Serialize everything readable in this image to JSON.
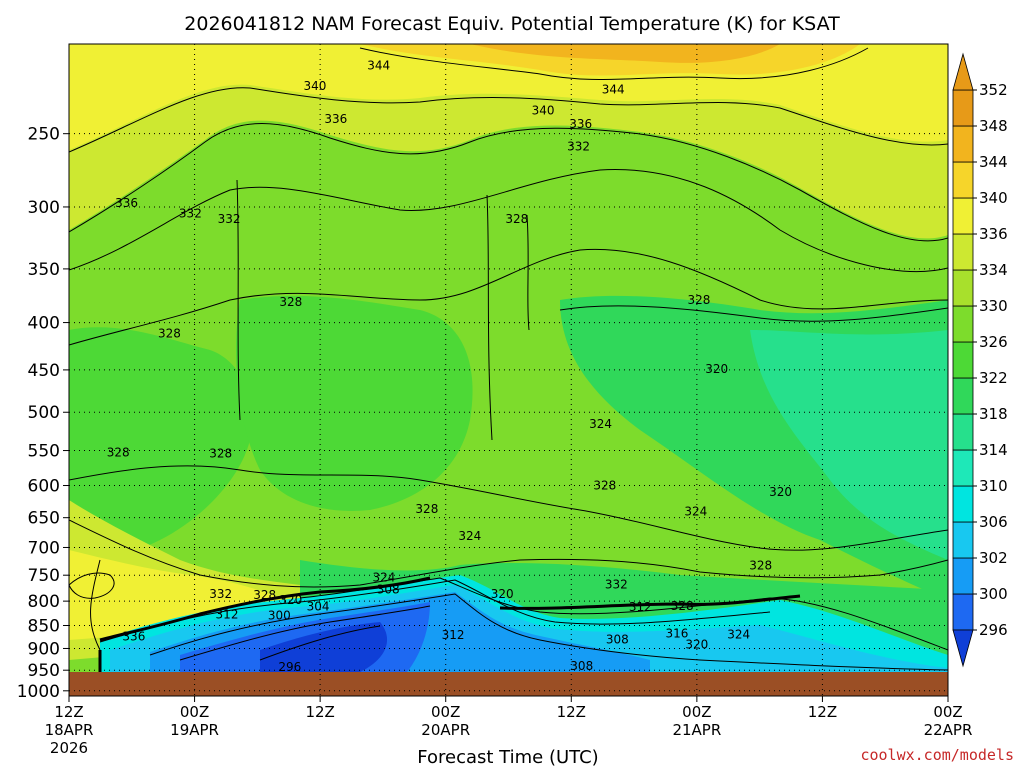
{
  "chart_data": {
    "type": "heatmap",
    "title": "2026041812 NAM Forecast Equiv. Potential Temperature (K) for KSAT",
    "xlabel": "Forecast Time (UTC)",
    "ylabel": "",
    "x_ticks": [
      {
        "time": "12Z",
        "date": "18APR",
        "year": "2026",
        "hours": 0
      },
      {
        "time": "00Z",
        "date": "19APR",
        "year": "",
        "hours": 12
      },
      {
        "time": "12Z",
        "date": "",
        "year": "",
        "hours": 24
      },
      {
        "time": "00Z",
        "date": "20APR",
        "year": "",
        "hours": 36
      },
      {
        "time": "12Z",
        "date": "",
        "year": "",
        "hours": 48
      },
      {
        "time": "00Z",
        "date": "21APR",
        "year": "",
        "hours": 60
      },
      {
        "time": "12Z",
        "date": "",
        "year": "",
        "hours": 72
      },
      {
        "time": "00Z",
        "date": "22APR",
        "year": "",
        "hours": 84
      }
    ],
    "y_ticks": [
      250,
      300,
      350,
      400,
      450,
      500,
      550,
      600,
      650,
      700,
      750,
      800,
      850,
      900,
      950,
      1000
    ],
    "y_range_hpa": [
      200,
      1013
    ],
    "colorbar": {
      "levels": [
        296,
        300,
        302,
        306,
        310,
        314,
        318,
        322,
        326,
        330,
        334,
        336,
        340,
        344,
        348,
        352
      ],
      "colors": [
        "#0f3fd7",
        "#1e69f2",
        "#169cf5",
        "#18c8f0",
        "#00e5e0",
        "#1ee8b8",
        "#26e08c",
        "#30d85a",
        "#4dd936",
        "#7ddc2c",
        "#a8e02c",
        "#cde831",
        "#f0f034",
        "#f6d52a",
        "#f2b41e",
        "#e79a18"
      ]
    },
    "contour_labels": [
      {
        "value": "344",
        "hours": 29.6,
        "hpa": 211
      },
      {
        "value": "344",
        "hours": 52.0,
        "hpa": 224
      },
      {
        "value": "340",
        "hours": 23.5,
        "hpa": 222
      },
      {
        "value": "340",
        "hours": 45.3,
        "hpa": 236
      },
      {
        "value": "336",
        "hours": 25.5,
        "hpa": 241
      },
      {
        "value": "336",
        "hours": 48.9,
        "hpa": 244
      },
      {
        "value": "336",
        "hours": 5.5,
        "hpa": 297
      },
      {
        "value": "332",
        "hours": 48.7,
        "hpa": 258
      },
      {
        "value": "332",
        "hours": 11.6,
        "hpa": 305
      },
      {
        "value": "332",
        "hours": 15.3,
        "hpa": 309
      },
      {
        "value": "328",
        "hours": 42.8,
        "hpa": 309
      },
      {
        "value": "328",
        "hours": 21.2,
        "hpa": 380
      },
      {
        "value": "328",
        "hours": 60.2,
        "hpa": 378
      },
      {
        "value": "328",
        "hours": 9.6,
        "hpa": 411
      },
      {
        "value": "328",
        "hours": 4.7,
        "hpa": 553
      },
      {
        "value": "328",
        "hours": 14.5,
        "hpa": 554
      },
      {
        "value": "328",
        "hours": 34.2,
        "hpa": 636
      },
      {
        "value": "320",
        "hours": 61.9,
        "hpa": 449
      },
      {
        "value": "324",
        "hours": 50.8,
        "hpa": 515
      },
      {
        "value": "328",
        "hours": 51.2,
        "hpa": 600
      },
      {
        "value": "324",
        "hours": 59.9,
        "hpa": 640
      },
      {
        "value": "320",
        "hours": 68.0,
        "hpa": 610
      },
      {
        "value": "324",
        "hours": 38.3,
        "hpa": 680
      },
      {
        "value": "328",
        "hours": 66.1,
        "hpa": 732
      },
      {
        "value": "324",
        "hours": 30.1,
        "hpa": 754
      },
      {
        "value": "308",
        "hours": 30.5,
        "hpa": 777
      },
      {
        "value": "332",
        "hours": 14.5,
        "hpa": 786
      },
      {
        "value": "328",
        "hours": 18.7,
        "hpa": 788
      },
      {
        "value": "320",
        "hours": 21.2,
        "hpa": 798
      },
      {
        "value": "304",
        "hours": 23.8,
        "hpa": 811
      },
      {
        "value": "312",
        "hours": 15.1,
        "hpa": 827
      },
      {
        "value": "300",
        "hours": 20.1,
        "hpa": 829
      },
      {
        "value": "320",
        "hours": 41.4,
        "hpa": 786
      },
      {
        "value": "332",
        "hours": 52.3,
        "hpa": 768
      },
      {
        "value": "312",
        "hours": 54.6,
        "hpa": 812
      },
      {
        "value": "328",
        "hours": 58.6,
        "hpa": 810
      },
      {
        "value": "316",
        "hours": 58.1,
        "hpa": 867
      },
      {
        "value": "324",
        "hours": 64.0,
        "hpa": 869
      },
      {
        "value": "320",
        "hours": 60.0,
        "hpa": 891
      },
      {
        "value": "312",
        "hours": 36.7,
        "hpa": 870
      },
      {
        "value": "308",
        "hours": 52.4,
        "hpa": 880
      },
      {
        "value": "308",
        "hours": 49.0,
        "hpa": 940
      },
      {
        "value": "336",
        "hours": 6.2,
        "hpa": 874
      },
      {
        "value": "296",
        "hours": 21.1,
        "hpa": 943
      }
    ],
    "notes": "Time-height cross section of NAM forecast equivalent potential temperature (K). Color-filled at the colorbar levels with black contour lines every 2 K; brown band marks below-ground levels near 1000 hPa."
  },
  "colorbar_icons": {
    "top": "up-arrow-icon",
    "bottom": "down-arrow-icon"
  },
  "ground_color": "#9b4f25",
  "watermark": "coolwx.com/models"
}
